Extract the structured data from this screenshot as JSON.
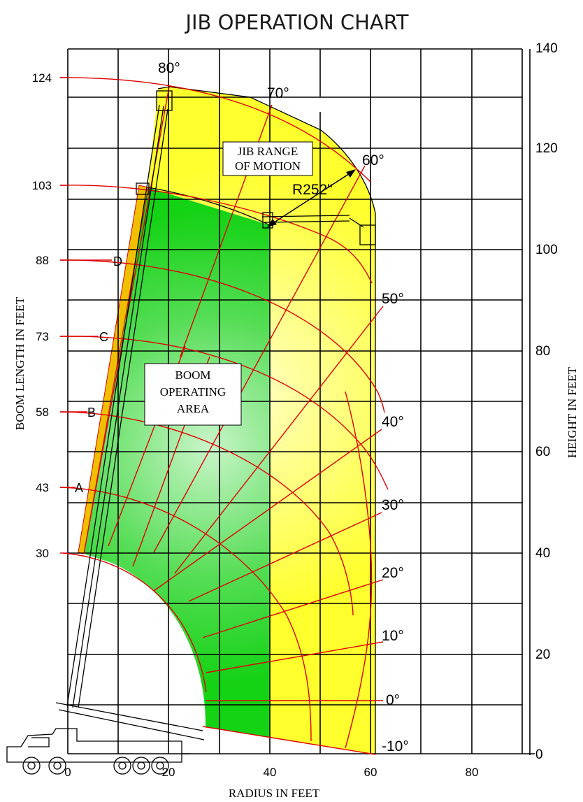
{
  "title": "JIB OPERATION CHART",
  "x_axis_label": "RADIUS IN FEET",
  "left_axis_label": "BOOM LENGTH IN FEET",
  "right_axis_label": "HEIGHT IN FEET",
  "x_ticks": [
    "0",
    "20",
    "40",
    "60",
    "80"
  ],
  "height_ticks": [
    "0",
    "20",
    "40",
    "60",
    "80",
    "100",
    "120",
    "140"
  ],
  "boom_length_ticks": [
    "30",
    "43",
    "58",
    "73",
    "88",
    "103",
    "124"
  ],
  "boom_letters": [
    "A",
    "B",
    "C",
    "D"
  ],
  "angle_labels": [
    "80°",
    "70°",
    "60°",
    "50°",
    "40°",
    "30°",
    "20°",
    "10°",
    "0°",
    "-10°"
  ],
  "jib_box": {
    "line1": "JIB RANGE",
    "line2": "OF MOTION"
  },
  "boom_box": {
    "line1": "BOOM",
    "line2": "OPERATING",
    "line3": "AREA"
  },
  "jib_radius_label": "R252\"",
  "colors": {
    "jib_zone": "#ffff44",
    "boom_zone": "#22dd22",
    "arc_lines": "#e00000",
    "grid": "#000000"
  },
  "chart_data": {
    "type": "other",
    "title": "JIB OPERATION CHART",
    "xlabel": "RADIUS IN FEET",
    "ylabel_left": "BOOM LENGTH IN FEET",
    "ylabel_right": "HEIGHT IN FEET",
    "xlim": [
      -10,
      90
    ],
    "ylim": [
      0,
      140
    ],
    "boom_lengths_ft": [
      30,
      43,
      58,
      73,
      88,
      103,
      124
    ],
    "boom_angles_deg": [
      80,
      70,
      60,
      50,
      40,
      30,
      20,
      10,
      0,
      -10
    ],
    "jib_radius": "R252\"",
    "zones": [
      "JIB RANGE OF MOTION",
      "BOOM OPERATING AREA"
    ],
    "grid": true
  }
}
